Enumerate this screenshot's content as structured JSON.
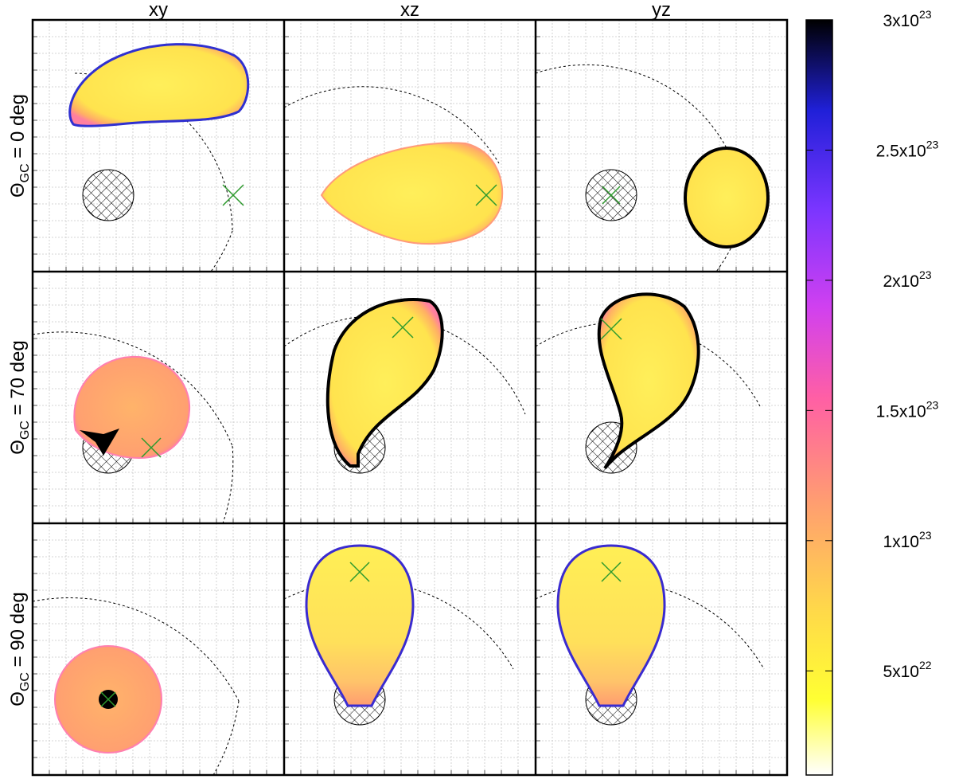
{
  "chart_data": {
    "type": "heatmap",
    "title": "",
    "columns": [
      "xy",
      "xz",
      "yz"
    ],
    "rows": [
      {
        "label_main": "Θ",
        "label_sub": "GC",
        "label_rest": " = 0 deg"
      },
      {
        "label_main": "Θ",
        "label_sub": "GC",
        "label_rest": " = 70 deg"
      },
      {
        "label_main": "Θ",
        "label_sub": "GC",
        "label_rest": " = 90 deg"
      }
    ],
    "grid": true,
    "colorbar": {
      "min": 1e+22,
      "max": 3e+23,
      "ticks": [
        {
          "value": 5e+22,
          "mantissa": "5x10",
          "exp": "22"
        },
        {
          "value": 1e+23,
          "mantissa": "1x10",
          "exp": "23"
        },
        {
          "value": 1.5e+23,
          "mantissa": "1.5x10",
          "exp": "23"
        },
        {
          "value": 2e+23,
          "mantissa": "2x10",
          "exp": "23"
        },
        {
          "value": 2.5e+23,
          "mantissa": "2.5x10",
          "exp": "23"
        },
        {
          "value": 3e+23,
          "mantissa": "3x10",
          "exp": "23"
        }
      ],
      "colors": [
        "#ffffff",
        "#ffff33",
        "#ffd84a",
        "#ff9e70",
        "#ff5fa5",
        "#d040f0",
        "#7a35ff",
        "#2020d8",
        "#000000"
      ]
    },
    "colors": {
      "cross": "#2e9a2e",
      "contour": "#000000",
      "blob_core": "#ffef5a",
      "blob_edge": "#ff9a7a"
    }
  }
}
